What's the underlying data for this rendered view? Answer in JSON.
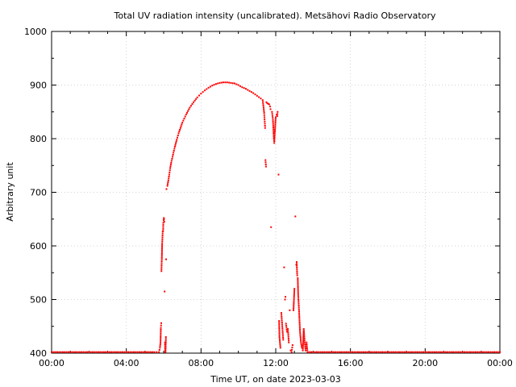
{
  "chart_data": {
    "type": "scatter",
    "title": "Total UV radiation intensity (uncalibrated). Metsähovi Radio Observatory",
    "xlabel": "Time UT, on date 2023-03-03",
    "ylabel": "Arbitrary unit",
    "xlim": [
      0,
      24
    ],
    "ylim": [
      400,
      1000
    ],
    "grid": true,
    "x_ticks": [
      {
        "value": 0,
        "label": "00:00"
      },
      {
        "value": 4,
        "label": "04:00"
      },
      {
        "value": 8,
        "label": "08:00"
      },
      {
        "value": 12,
        "label": "12:00"
      },
      {
        "value": 16,
        "label": "16:00"
      },
      {
        "value": 20,
        "label": "20:00"
      },
      {
        "value": 24,
        "label": "00:00"
      }
    ],
    "y_ticks": [
      {
        "value": 400,
        "label": "400"
      },
      {
        "value": 500,
        "label": "500"
      },
      {
        "value": 600,
        "label": "600"
      },
      {
        "value": 700,
        "label": "700"
      },
      {
        "value": 800,
        "label": "800"
      },
      {
        "value": 900,
        "label": "900"
      },
      {
        "value": 1000,
        "label": "1000"
      }
    ],
    "marker_color": "#ff0000",
    "series": [
      {
        "points": [
          [
            0.0,
            402
          ],
          [
            0.5,
            402
          ],
          [
            1.0,
            402
          ],
          [
            1.5,
            402
          ],
          [
            2.0,
            402
          ],
          [
            2.5,
            402
          ],
          [
            3.0,
            402
          ],
          [
            3.5,
            402
          ],
          [
            4.0,
            402
          ],
          [
            4.5,
            402
          ],
          [
            5.0,
            402
          ],
          [
            5.5,
            402
          ],
          [
            5.75,
            402
          ],
          [
            5.8,
            410
          ],
          [
            5.83,
            420
          ],
          [
            5.85,
            447
          ],
          [
            5.87,
            456
          ],
          [
            5.88,
            553
          ],
          [
            5.9,
            575
          ],
          [
            5.92,
            605
          ],
          [
            5.95,
            627
          ],
          [
            5.97,
            628
          ],
          [
            5.98,
            643
          ],
          [
            6.0,
            648
          ],
          [
            6.01,
            652
          ],
          [
            6.02,
            650
          ],
          [
            6.03,
            645
          ],
          [
            6.05,
            515
          ],
          [
            6.07,
            420
          ],
          [
            6.08,
            402
          ],
          [
            6.1,
            402
          ],
          [
            6.12,
            430
          ],
          [
            6.13,
            575
          ],
          [
            6.15,
            706
          ],
          [
            6.2,
            712
          ],
          [
            6.25,
            722
          ],
          [
            6.3,
            733
          ],
          [
            6.35,
            745
          ],
          [
            6.4,
            755
          ],
          [
            6.5,
            770
          ],
          [
            6.6,
            785
          ],
          [
            6.7,
            798
          ],
          [
            6.8,
            810
          ],
          [
            6.9,
            820
          ],
          [
            7.0,
            830
          ],
          [
            7.2,
            845
          ],
          [
            7.4,
            858
          ],
          [
            7.6,
            868
          ],
          [
            7.8,
            877
          ],
          [
            8.0,
            884
          ],
          [
            8.2,
            890
          ],
          [
            8.4,
            895
          ],
          [
            8.6,
            899
          ],
          [
            8.8,
            902
          ],
          [
            9.0,
            904
          ],
          [
            9.2,
            905
          ],
          [
            9.4,
            905
          ],
          [
            9.6,
            904
          ],
          [
            9.8,
            903
          ],
          [
            10.0,
            900
          ],
          [
            10.2,
            896
          ],
          [
            10.4,
            893
          ],
          [
            10.6,
            889
          ],
          [
            10.8,
            885
          ],
          [
            11.0,
            880
          ],
          [
            11.2,
            875
          ],
          [
            11.3,
            872
          ],
          [
            11.35,
            858
          ],
          [
            11.38,
            848
          ],
          [
            11.4,
            836
          ],
          [
            11.42,
            828
          ],
          [
            11.43,
            820
          ],
          [
            11.45,
            760
          ],
          [
            11.48,
            748
          ],
          [
            11.5,
            868
          ],
          [
            11.55,
            866
          ],
          [
            11.6,
            865
          ],
          [
            11.65,
            864
          ],
          [
            11.7,
            860
          ],
          [
            11.72,
            855
          ],
          [
            11.75,
            635
          ],
          [
            11.8,
            850
          ],
          [
            11.85,
            835
          ],
          [
            11.9,
            800
          ],
          [
            11.92,
            792
          ],
          [
            11.95,
            810
          ],
          [
            12.0,
            840
          ],
          [
            12.05,
            845
          ],
          [
            12.08,
            842
          ],
          [
            12.1,
            850
          ],
          [
            12.15,
            733
          ],
          [
            12.18,
            460
          ],
          [
            12.2,
            430
          ],
          [
            12.25,
            410
          ],
          [
            12.3,
            475
          ],
          [
            12.35,
            450
          ],
          [
            12.4,
            425
          ],
          [
            12.45,
            560
          ],
          [
            12.5,
            500
          ],
          [
            12.52,
            505
          ],
          [
            12.55,
            455
          ],
          [
            12.6,
            440
          ],
          [
            12.65,
            445
          ],
          [
            12.7,
            420
          ],
          [
            12.75,
            480
          ],
          [
            12.8,
            405
          ],
          [
            12.85,
            402
          ],
          [
            12.9,
            415
          ],
          [
            12.95,
            480
          ],
          [
            13.0,
            520
          ],
          [
            13.05,
            655
          ],
          [
            13.1,
            565
          ],
          [
            13.12,
            570
          ],
          [
            13.15,
            545
          ],
          [
            13.18,
            540
          ],
          [
            13.2,
            510
          ],
          [
            13.25,
            478
          ],
          [
            13.3,
            440
          ],
          [
            13.35,
            420
          ],
          [
            13.4,
            410
          ],
          [
            13.45,
            405
          ],
          [
            13.5,
            445
          ],
          [
            13.55,
            420
          ],
          [
            13.6,
            405
          ],
          [
            13.65,
            420
          ],
          [
            13.7,
            402
          ],
          [
            14.0,
            402
          ],
          [
            14.5,
            402
          ],
          [
            15.0,
            402
          ],
          [
            15.5,
            402
          ],
          [
            16.0,
            402
          ],
          [
            16.5,
            402
          ],
          [
            17.0,
            402
          ],
          [
            17.5,
            402
          ],
          [
            18.0,
            402
          ],
          [
            18.5,
            402
          ],
          [
            19.0,
            402
          ],
          [
            19.5,
            402
          ],
          [
            20.0,
            402
          ],
          [
            20.5,
            402
          ],
          [
            21.0,
            402
          ],
          [
            21.5,
            402
          ],
          [
            22.0,
            402
          ],
          [
            22.5,
            402
          ],
          [
            23.0,
            402
          ],
          [
            23.5,
            402
          ],
          [
            24.0,
            402
          ]
        ]
      }
    ]
  }
}
